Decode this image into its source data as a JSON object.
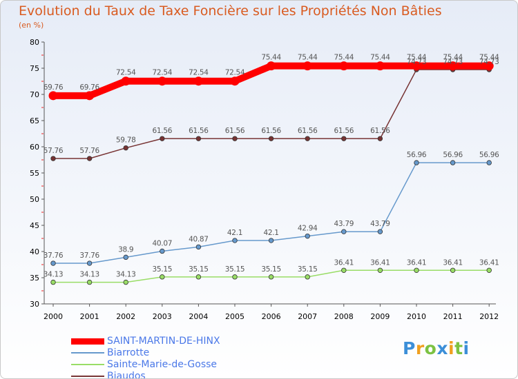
{
  "chart_data": {
    "type": "line",
    "title": "Evolution du Taux de Taxe Foncière sur les Propriétés Non Bâties",
    "ylabel": "(en %)",
    "xlabel": "",
    "x": [
      "2000",
      "2001",
      "2002",
      "2003",
      "2004",
      "2005",
      "2006",
      "2007",
      "2008",
      "2009",
      "2010",
      "2011",
      "2012"
    ],
    "ylim": [
      30,
      80
    ],
    "yticks": [
      "30",
      "35",
      "40",
      "45",
      "50",
      "55",
      "60",
      "65",
      "70",
      "75",
      "80"
    ],
    "grid": false,
    "legend_position": "bottom-left",
    "series": [
      {
        "name": "SAINT-MARTIN-DE-HINX",
        "color": "#ff0000",
        "values": [
          69.76,
          69.76,
          72.54,
          72.54,
          72.54,
          72.54,
          75.44,
          75.44,
          75.44,
          75.44,
          75.44,
          75.44,
          75.44
        ],
        "labels": [
          "69.76",
          "69.76",
          "72.54",
          "72.54",
          "72.54",
          "72.54",
          "75.44",
          "75.44",
          "75.44",
          "75.44",
          "75.44",
          "75.44",
          "75.44"
        ]
      },
      {
        "name": "Biarrotte",
        "color": "#6699cc",
        "values": [
          37.76,
          37.76,
          38.9,
          40.07,
          40.87,
          42.1,
          42.1,
          42.94,
          43.79,
          43.79,
          56.96,
          56.96,
          56.96
        ],
        "labels": [
          "37.76",
          "37.76",
          "38.9",
          "40.07",
          "40.87",
          "42.1",
          "42.1",
          "42.94",
          "43.79",
          "43.79",
          "56.96",
          "56.96",
          "56.96"
        ]
      },
      {
        "name": "Sainte-Marie-de-Gosse",
        "color": "#99dd66",
        "values": [
          34.13,
          34.13,
          34.13,
          35.15,
          35.15,
          35.15,
          35.15,
          35.15,
          36.41,
          36.41,
          36.41,
          36.41,
          36.41
        ],
        "labels": [
          "34.13",
          "34.13",
          "34.13",
          "35.15",
          "35.15",
          "35.15",
          "35.15",
          "35.15",
          "36.41",
          "36.41",
          "36.41",
          "36.41",
          "36.41"
        ]
      },
      {
        "name": "Biaudos",
        "color": "#773333",
        "values": [
          57.76,
          57.76,
          59.78,
          61.56,
          61.56,
          61.56,
          61.56,
          61.56,
          61.56,
          61.56,
          74.73,
          74.73,
          74.73
        ],
        "labels": [
          "57.76",
          "57.76",
          "59.78",
          "61.56",
          "61.56",
          "61.56",
          "61.56",
          "61.56",
          "61.56",
          "61.56",
          "74.73",
          "74.73",
          "74.73"
        ]
      }
    ]
  },
  "logo": {
    "letters": [
      "P",
      "r",
      "o",
      "x",
      "i",
      "t",
      "i"
    ],
    "colors": [
      "#3c8fd8",
      "#f0a020",
      "#7cc242",
      "#3c8fd8",
      "#f0a020",
      "#7cc242",
      "#3c8fd8"
    ]
  }
}
